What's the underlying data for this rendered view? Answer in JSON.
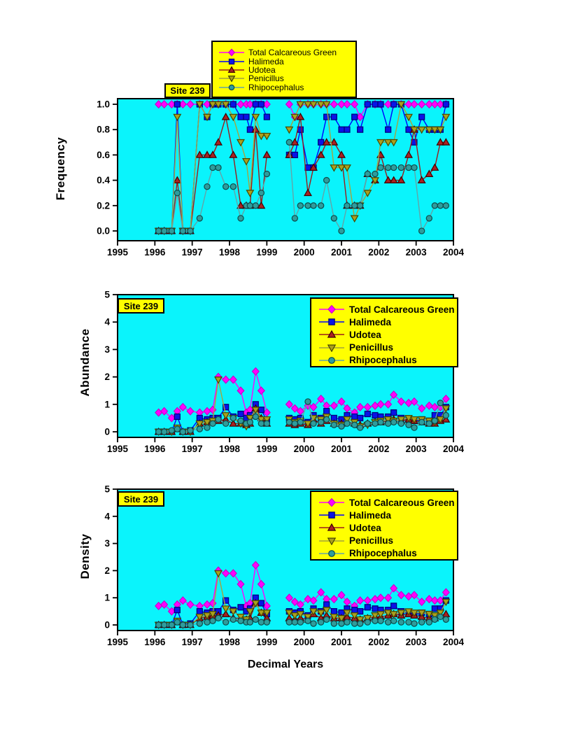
{
  "site_label": "Site 239",
  "xlabel": "Decimal Years",
  "colors": {
    "page_bg": "#FFFFFF",
    "plot_bg": "#0AF4FC",
    "frame": "#000000",
    "legend_bg": "#FFFF00"
  },
  "legend": {
    "entries": [
      {
        "label": "Total Calcareous Green",
        "marker": "diamond",
        "fill": "#FF00FF",
        "line": "#FF00FF",
        "edge": "#C800C8"
      },
      {
        "label": "Halimeda",
        "marker": "square",
        "fill": "#0A14E6",
        "line": "#0000FF",
        "edge": "#000078"
      },
      {
        "label": "Udotea",
        "marker": "triangle-up",
        "fill": "#AA2222",
        "line": "#9B1B1B",
        "edge": "#3F0000"
      },
      {
        "label": "Penicillus",
        "marker": "triangle-down",
        "fill": "#ABA01E",
        "line": "#A4A43E",
        "edge": "#474700"
      },
      {
        "label": "Rhipocephalus",
        "marker": "circle",
        "fill": "#2F9C9C",
        "line": "#63A4A7",
        "edge": "#0C4C4C"
      }
    ]
  },
  "chart_data": [
    {
      "type": "line",
      "ylabel": "Frequency",
      "ylim": [
        0.0,
        1.0
      ],
      "yticks": [
        "0.0",
        "0.2",
        "0.4",
        "0.6",
        "0.8",
        "1.0"
      ],
      "ytick_values": [
        0,
        0.2,
        0.4,
        0.6,
        0.8,
        1.0
      ],
      "xlim": [
        1995,
        2004
      ],
      "xticks": [
        "1995",
        "1996",
        "1997",
        "1998",
        "1999",
        "2000",
        "2001",
        "2002",
        "2003",
        "2004"
      ],
      "xtick_values": [
        1995,
        1996,
        1997,
        1998,
        1999,
        2000,
        2001,
        2002,
        2003,
        2004
      ],
      "x": [
        1996.1,
        1996.25,
        1996.45,
        1996.6,
        1996.75,
        1996.95,
        1997.2,
        1997.4,
        1997.55,
        1997.7,
        1997.9,
        1998.1,
        1998.3,
        1998.45,
        1998.55,
        1998.7,
        1998.85,
        1999.0,
        1999.6,
        1999.75,
        1999.9,
        2000.1,
        2000.25,
        2000.45,
        2000.6,
        2000.8,
        2001.0,
        2001.15,
        2001.35,
        2001.5,
        2001.7,
        2001.9,
        2002.05,
        2002.25,
        2002.4,
        2002.6,
        2002.8,
        2002.95,
        2003.15,
        2003.35,
        2003.5,
        2003.65,
        2003.8
      ],
      "series": [
        {
          "name": "Total Calcareous Green",
          "values": [
            1,
            1,
            1,
            1,
            1,
            1,
            1,
            1,
            1,
            1,
            1,
            1,
            1,
            1,
            1,
            1,
            1,
            1,
            1,
            0.9,
            1,
            1,
            1,
            1,
            1,
            1,
            1,
            1,
            1,
            0.9,
            1,
            1,
            1,
            1,
            1,
            1,
            1,
            1,
            1,
            1,
            1,
            1,
            1
          ]
        },
        {
          "name": "Halimeda",
          "values": [
            0,
            0,
            0,
            1,
            0,
            0,
            1,
            0.9,
            1,
            1,
            1,
            1,
            0.9,
            0.9,
            0.8,
            1,
            1,
            0.9,
            0.6,
            0.6,
            0.8,
            0.5,
            0.5,
            0.7,
            0.9,
            0.9,
            0.8,
            0.8,
            0.9,
            0.8,
            1,
            1,
            1,
            0.8,
            1,
            1,
            0.8,
            0.7,
            0.9,
            0.8,
            0.8,
            0.8,
            1
          ]
        },
        {
          "name": "Udotea",
          "values": [
            0,
            0,
            0,
            0.4,
            0,
            0,
            0.6,
            0.6,
            0.6,
            0.7,
            0.9,
            0.6,
            0.2,
            0.2,
            0.2,
            0.8,
            0.2,
            0.6,
            0.6,
            0.7,
            0.9,
            0.3,
            0.5,
            0.6,
            0.7,
            0.7,
            0.6,
            0.2,
            0.2,
            0.2,
            0.45,
            0.4,
            0.6,
            0.4,
            0.4,
            0.4,
            0.6,
            0.8,
            0.4,
            0.45,
            0.5,
            0.7,
            0.7
          ]
        },
        {
          "name": "Penicillus",
          "values": [
            0,
            0,
            0,
            0.9,
            0,
            0,
            1,
            0.9,
            1,
            1,
            1,
            0.9,
            0.7,
            0.55,
            0.3,
            0.9,
            0.75,
            0.75,
            0.8,
            0.9,
            1,
            1,
            1,
            1,
            1,
            0.5,
            0.5,
            0.5,
            0.1,
            0.2,
            0.3,
            0.4,
            0.7,
            0.7,
            0.7,
            1,
            0.9,
            0.8,
            0.8,
            0.8,
            0.8,
            0.8,
            0.9
          ]
        },
        {
          "name": "Rhipocephalus",
          "values": [
            0,
            0,
            0,
            0.3,
            0,
            0,
            0.1,
            0.35,
            0.5,
            0.5,
            0.35,
            0.35,
            0.1,
            0.2,
            0.2,
            0.2,
            0.3,
            0.45,
            0.7,
            0.1,
            0.2,
            0.2,
            0.2,
            0.2,
            0.4,
            0.1,
            0,
            0.2,
            0.2,
            0.2,
            0.45,
            0.45,
            0.5,
            0.5,
            0.5,
            0.5,
            0.5,
            0.5,
            0,
            0.1,
            0.2,
            0.2,
            0.2
          ]
        }
      ]
    },
    {
      "type": "line",
      "ylabel": "Abundance",
      "ylim": [
        0,
        5
      ],
      "yticks": [
        "0",
        "1",
        "2",
        "3",
        "4",
        "5"
      ],
      "ytick_values": [
        0,
        1,
        2,
        3,
        4,
        5
      ],
      "xlim": [
        1995,
        2004
      ],
      "xticks": [
        "1995",
        "1996",
        "1997",
        "1998",
        "1999",
        "2000",
        "2001",
        "2002",
        "2003",
        "2004"
      ],
      "xtick_values": [
        1995,
        1996,
        1997,
        1998,
        1999,
        2000,
        2001,
        2002,
        2003,
        2004
      ],
      "x": [
        1996.1,
        1996.25,
        1996.45,
        1996.6,
        1996.75,
        1996.95,
        1997.2,
        1997.4,
        1997.55,
        1997.7,
        1997.9,
        1998.1,
        1998.3,
        1998.45,
        1998.55,
        1998.7,
        1998.85,
        1999.0,
        1999.6,
        1999.75,
        1999.9,
        2000.1,
        2000.25,
        2000.45,
        2000.6,
        2000.8,
        2001.0,
        2001.15,
        2001.35,
        2001.5,
        2001.7,
        2001.9,
        2002.05,
        2002.25,
        2002.4,
        2002.6,
        2002.8,
        2002.95,
        2003.15,
        2003.35,
        2003.5,
        2003.65,
        2003.8
      ],
      "series": [
        {
          "name": "Total Calcareous Green",
          "values": [
            0.7,
            0.75,
            0.5,
            0.75,
            0.9,
            0.75,
            0.7,
            0.75,
            0.8,
            2.0,
            1.9,
            1.9,
            1.5,
            0.7,
            0.8,
            2.2,
            1.5,
            0.7,
            1.0,
            0.85,
            0.75,
            0.95,
            0.9,
            1.2,
            0.95,
            0.95,
            1.1,
            0.85,
            0.7,
            0.9,
            0.9,
            0.95,
            1.0,
            1.0,
            1.35,
            1.1,
            1.05,
            1.1,
            0.85,
            0.95,
            0.9,
            0.9,
            1.2
          ]
        },
        {
          "name": "Halimeda",
          "values": [
            0,
            0,
            0,
            0.55,
            0,
            0.05,
            0.5,
            0.45,
            0.5,
            0.5,
            0.9,
            0.55,
            0.65,
            0.5,
            0.6,
            1.0,
            0.8,
            0.4,
            0.5,
            0.45,
            0.5,
            0.35,
            0.6,
            0.5,
            0.75,
            0.5,
            0.45,
            0.6,
            0.55,
            0.5,
            0.65,
            0.6,
            0.55,
            0.55,
            0.7,
            0.5,
            0.45,
            0.4,
            0.45,
            0.4,
            0.6,
            0.6,
            0.9
          ]
        },
        {
          "name": "Udotea",
          "values": [
            0,
            0,
            0,
            0.1,
            0,
            0,
            0.3,
            0.35,
            0.4,
            0.4,
            0.45,
            0.3,
            0.3,
            0.25,
            0.3,
            0.85,
            0.5,
            0.3,
            0.3,
            0.25,
            0.3,
            0.25,
            0.45,
            0.3,
            0.4,
            0.3,
            0.3,
            0.35,
            0.3,
            0.25,
            0.3,
            0.35,
            0.35,
            0.4,
            0.45,
            0.4,
            0.45,
            0.4,
            0.35,
            0.3,
            0.3,
            0.4,
            0.45
          ]
        },
        {
          "name": "Penicillus",
          "values": [
            0,
            0,
            0,
            0.15,
            0,
            0,
            0.3,
            0.35,
            0.4,
            1.9,
            0.6,
            0.5,
            0.3,
            0.2,
            0.5,
            0.8,
            0.45,
            0.45,
            0.45,
            0.35,
            0.4,
            0.3,
            0.5,
            0.45,
            0.55,
            0.3,
            0.25,
            0.45,
            0.35,
            0.2,
            0.25,
            0.35,
            0.4,
            0.45,
            0.4,
            0.45,
            0.5,
            0.45,
            0.45,
            0.4,
            0.35,
            0.45,
            0.85
          ]
        },
        {
          "name": "Rhipocephalus",
          "values": [
            0,
            0,
            0.05,
            0.1,
            0,
            0.05,
            0.1,
            0.15,
            0.3,
            0.45,
            0.3,
            0.5,
            0.4,
            0.3,
            0.35,
            0.55,
            0.3,
            0.3,
            0.35,
            0.3,
            0.35,
            1.1,
            0.3,
            0.35,
            0.45,
            0.25,
            0.2,
            0.3,
            0.25,
            0.15,
            0.3,
            0.3,
            0.35,
            0.3,
            0.35,
            0.3,
            0.25,
            0.15,
            0.35,
            0.3,
            0.4,
            1.05,
            0.6
          ]
        }
      ]
    },
    {
      "type": "line",
      "ylabel": "Density",
      "ylim": [
        0,
        5
      ],
      "yticks": [
        "0",
        "1",
        "2",
        "3",
        "4",
        "5"
      ],
      "ytick_values": [
        0,
        1,
        2,
        3,
        4,
        5
      ],
      "xlim": [
        1995,
        2004
      ],
      "xticks": [
        "1995",
        "1996",
        "1997",
        "1998",
        "1999",
        "2000",
        "2001",
        "2002",
        "2003",
        "2004"
      ],
      "xtick_values": [
        1995,
        1996,
        1997,
        1998,
        1999,
        2000,
        2001,
        2002,
        2003,
        2004
      ],
      "x": [
        1996.1,
        1996.25,
        1996.45,
        1996.6,
        1996.75,
        1996.95,
        1997.2,
        1997.4,
        1997.55,
        1997.7,
        1997.9,
        1998.1,
        1998.3,
        1998.45,
        1998.55,
        1998.7,
        1998.85,
        1999.0,
        1999.6,
        1999.75,
        1999.9,
        2000.1,
        2000.25,
        2000.45,
        2000.6,
        2000.8,
        2001.0,
        2001.15,
        2001.35,
        2001.5,
        2001.7,
        2001.9,
        2002.05,
        2002.25,
        2002.4,
        2002.6,
        2002.8,
        2002.95,
        2003.15,
        2003.35,
        2003.5,
        2003.65,
        2003.8
      ],
      "series": [
        {
          "name": "Total Calcareous Green",
          "values": [
            0.7,
            0.75,
            0.5,
            0.75,
            0.9,
            0.75,
            0.7,
            0.75,
            0.8,
            2.0,
            1.9,
            1.9,
            1.5,
            0.7,
            0.8,
            2.2,
            1.5,
            0.7,
            1.0,
            0.85,
            0.75,
            0.95,
            0.9,
            1.2,
            0.95,
            0.95,
            1.1,
            0.85,
            0.7,
            0.9,
            0.9,
            0.95,
            1.0,
            1.0,
            1.35,
            1.1,
            1.05,
            1.1,
            0.85,
            0.95,
            0.9,
            0.9,
            1.2
          ]
        },
        {
          "name": "Halimeda",
          "values": [
            0,
            0,
            0,
            0.55,
            0,
            0.05,
            0.5,
            0.45,
            0.5,
            0.5,
            0.9,
            0.55,
            0.65,
            0.5,
            0.6,
            1.0,
            0.8,
            0.4,
            0.5,
            0.45,
            0.5,
            0.35,
            0.6,
            0.5,
            0.75,
            0.5,
            0.45,
            0.6,
            0.55,
            0.5,
            0.65,
            0.6,
            0.55,
            0.55,
            0.7,
            0.5,
            0.45,
            0.4,
            0.45,
            0.4,
            0.6,
            0.6,
            0.9
          ]
        },
        {
          "name": "Udotea",
          "values": [
            0,
            0,
            0,
            0.1,
            0,
            0,
            0.25,
            0.3,
            0.35,
            0.35,
            0.4,
            0.25,
            0.25,
            0.2,
            0.25,
            0.8,
            0.45,
            0.25,
            0.25,
            0.2,
            0.25,
            0.2,
            0.4,
            0.25,
            0.35,
            0.25,
            0.25,
            0.3,
            0.25,
            0.2,
            0.25,
            0.3,
            0.3,
            0.35,
            0.4,
            0.35,
            0.4,
            0.35,
            0.3,
            0.25,
            0.25,
            0.35,
            0.4
          ]
        },
        {
          "name": "Penicillus",
          "values": [
            0,
            0,
            0,
            0.15,
            0,
            0,
            0.3,
            0.35,
            0.4,
            1.9,
            0.6,
            0.5,
            0.3,
            0.2,
            0.5,
            0.8,
            0.45,
            0.45,
            0.45,
            0.35,
            0.4,
            0.3,
            0.5,
            0.45,
            0.55,
            0.3,
            0.25,
            0.45,
            0.35,
            0.2,
            0.25,
            0.35,
            0.4,
            0.45,
            0.4,
            0.45,
            0.5,
            0.45,
            0.45,
            0.4,
            0.35,
            0.45,
            0.85
          ]
        },
        {
          "name": "Rhipocephalus",
          "values": [
            0,
            0,
            0,
            0.1,
            0,
            0,
            0.05,
            0.1,
            0.15,
            0.25,
            0.1,
            0.2,
            0.15,
            0.1,
            0.1,
            0.2,
            0.1,
            0.1,
            0.1,
            0.1,
            0.1,
            0.15,
            0.05,
            0.1,
            0.2,
            0.05,
            0.05,
            0.1,
            0.05,
            0.05,
            0.1,
            0.15,
            0.15,
            0.1,
            0.15,
            0.1,
            0.1,
            0.05,
            0.1,
            0.1,
            0.2,
            0.3,
            0.2
          ]
        }
      ]
    }
  ]
}
